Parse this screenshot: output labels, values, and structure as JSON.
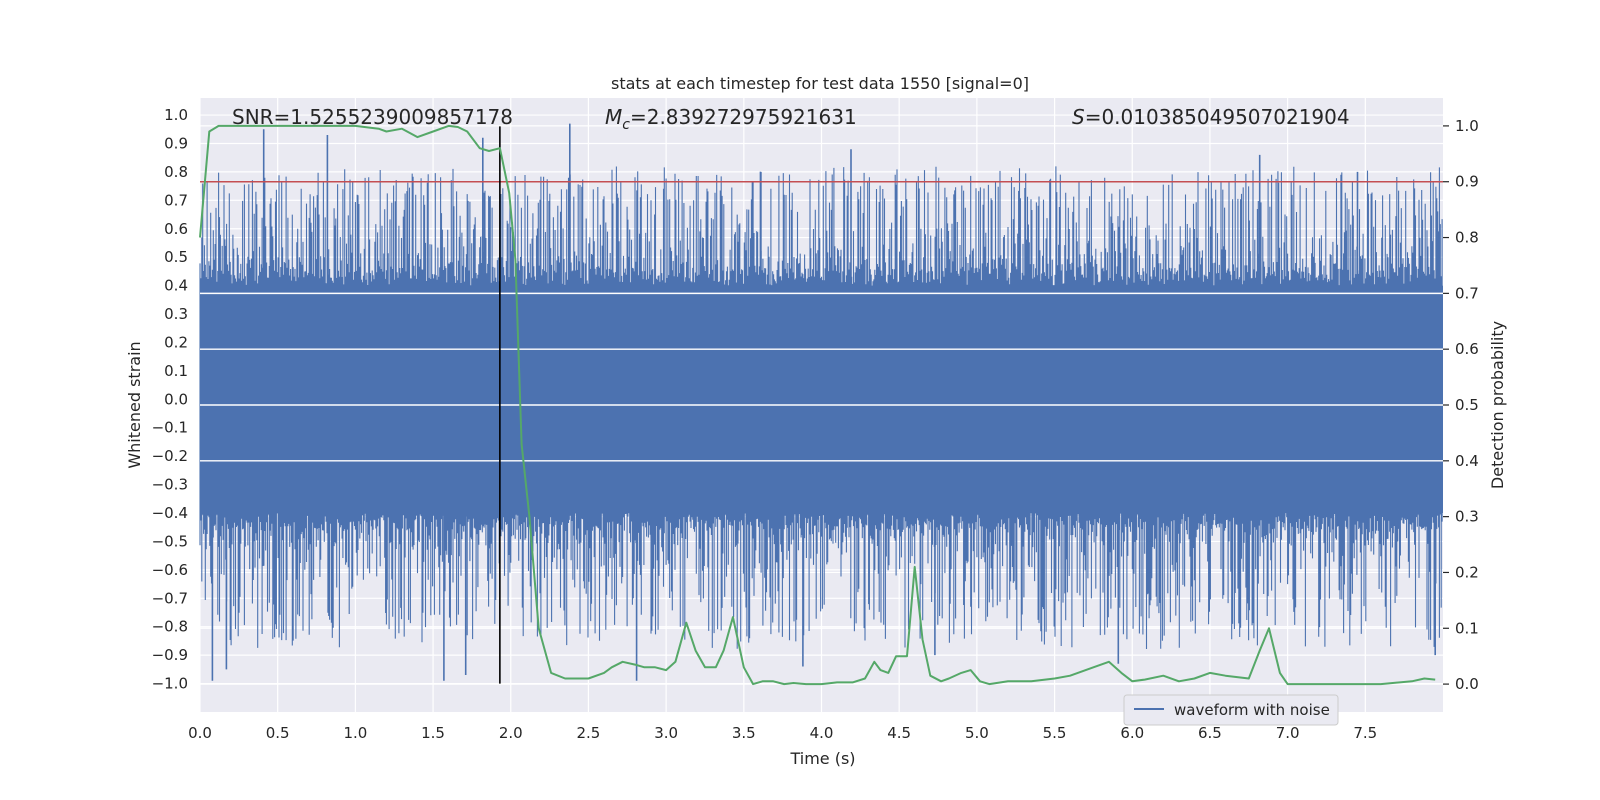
{
  "chart_data": {
    "type": "line",
    "title": "stats at each timestep for test data 1550 [signal=0]",
    "xlabel": "Time (s)",
    "ylabel_left": "Whitened strain",
    "ylabel_right": "Detection probability",
    "xlim": [
      0,
      8.0
    ],
    "ylim_left": [
      -1.1,
      1.06
    ],
    "ylim_right": [
      -0.05,
      1.05
    ],
    "x_ticks": [
      0.0,
      0.5,
      1.0,
      1.5,
      2.0,
      2.5,
      3.0,
      3.5,
      4.0,
      4.5,
      5.0,
      5.5,
      6.0,
      6.5,
      7.0,
      7.5
    ],
    "x_tick_labels": [
      "0.0",
      "0.5",
      "1.0",
      "1.5",
      "2.0",
      "2.5",
      "3.0",
      "3.5",
      "4.0",
      "4.5",
      "5.0",
      "5.5",
      "6.0",
      "6.5",
      "7.0",
      "7.5"
    ],
    "y_left_ticks": [
      1.0,
      0.9,
      0.8,
      0.7,
      0.6,
      0.5,
      0.4,
      0.3,
      0.2,
      0.1,
      0.0,
      -0.1,
      -0.2,
      -0.3,
      -0.4,
      -0.5,
      -0.6,
      -0.7,
      -0.8,
      -0.9,
      -1.0
    ],
    "y_left_tick_labels": [
      "1.0",
      "0.9",
      "0.8",
      "0.7",
      "0.6",
      "0.5",
      "0.4",
      "0.3",
      "0.2",
      "0.1",
      "0.0",
      "−0.1",
      "−0.2",
      "−0.3",
      "−0.4",
      "−0.5",
      "−0.6",
      "−0.7",
      "−0.8",
      "−0.9",
      "−1.0"
    ],
    "y_right_ticks": [
      1.0,
      0.9,
      0.8,
      0.7,
      0.6,
      0.5,
      0.4,
      0.3,
      0.2,
      0.1,
      0.0
    ],
    "y_right_tick_labels": [
      "1.0",
      "0.9",
      "0.8",
      "0.7",
      "0.6",
      "0.5",
      "0.4",
      "0.3",
      "0.2",
      "0.1",
      "0.0"
    ],
    "annotations": {
      "snr": "SNR=1.5255239009857178",
      "mc_symbol": "M",
      "mc_sub": "c",
      "mc_value": "=2.839272975921631",
      "s_symbol": "S",
      "s_value": "=0.010385049507021904"
    },
    "legend": {
      "location": "lower-center-right",
      "entries": [
        "waveform with noise"
      ]
    },
    "threshold_line": {
      "axis": "right",
      "y": 0.9,
      "color": "#c44e52"
    },
    "vline": {
      "x": 1.93,
      "color": "#000000"
    },
    "waveform": {
      "name": "waveform with noise",
      "axis": "left",
      "color": "#4c72b0",
      "duration": 8.0,
      "core_amplitude": 0.4,
      "peak_upper": [
        [
          0.41,
          0.95
        ],
        [
          0.82,
          0.93
        ],
        [
          1.82,
          0.92
        ],
        [
          2.38,
          0.97
        ],
        [
          4.19,
          0.88
        ],
        [
          6.82,
          0.86
        ],
        [
          3.61,
          0.8
        ],
        [
          7.45,
          0.8
        ]
      ],
      "peak_lower": [
        [
          0.08,
          -0.99
        ],
        [
          0.17,
          -0.95
        ],
        [
          1.57,
          -0.99
        ],
        [
          1.71,
          -0.97
        ],
        [
          2.81,
          -0.99
        ],
        [
          3.88,
          -0.94
        ],
        [
          5.91,
          -0.93
        ],
        [
          4.73,
          -0.9
        ],
        [
          7.95,
          -0.9
        ]
      ]
    },
    "probability": {
      "name": "detection probability",
      "axis": "right",
      "color": "#55a868",
      "x": [
        0.0,
        0.06,
        0.12,
        0.25,
        0.5,
        0.8,
        1.0,
        1.15,
        1.2,
        1.3,
        1.4,
        1.5,
        1.6,
        1.66,
        1.72,
        1.8,
        1.86,
        1.93,
        1.99,
        2.03,
        2.07,
        2.12,
        2.18,
        2.26,
        2.35,
        2.5,
        2.6,
        2.65,
        2.72,
        2.8,
        2.86,
        2.93,
        3.0,
        3.06,
        3.13,
        3.19,
        3.25,
        3.32,
        3.37,
        3.43,
        3.5,
        3.56,
        3.62,
        3.69,
        3.76,
        3.82,
        3.9,
        4.0,
        4.1,
        4.2,
        4.28,
        4.34,
        4.38,
        4.43,
        4.48,
        4.55,
        4.6,
        4.65,
        4.7,
        4.77,
        4.82,
        4.9,
        4.96,
        5.02,
        5.08,
        5.2,
        5.35,
        5.5,
        5.6,
        5.75,
        5.85,
        5.93,
        6.0,
        6.08,
        6.2,
        6.3,
        6.4,
        6.5,
        6.6,
        6.75,
        6.82,
        6.88,
        6.95,
        7.0,
        7.2,
        7.4,
        7.6,
        7.8,
        7.88,
        7.95
      ],
      "y": [
        0.8,
        0.99,
        1.0,
        1.0,
        1.0,
        1.0,
        1.0,
        0.995,
        0.99,
        0.995,
        0.98,
        0.99,
        1.0,
        0.998,
        0.99,
        0.96,
        0.955,
        0.96,
        0.88,
        0.76,
        0.43,
        0.3,
        0.1,
        0.02,
        0.01,
        0.01,
        0.02,
        0.03,
        0.04,
        0.035,
        0.03,
        0.03,
        0.025,
        0.04,
        0.11,
        0.06,
        0.03,
        0.03,
        0.06,
        0.12,
        0.03,
        0.0,
        0.005,
        0.005,
        0.0,
        0.002,
        0.0,
        0.0,
        0.003,
        0.003,
        0.01,
        0.04,
        0.025,
        0.02,
        0.05,
        0.05,
        0.21,
        0.08,
        0.015,
        0.005,
        0.01,
        0.02,
        0.025,
        0.005,
        0.0,
        0.005,
        0.005,
        0.01,
        0.015,
        0.03,
        0.04,
        0.02,
        0.005,
        0.008,
        0.015,
        0.005,
        0.01,
        0.02,
        0.015,
        0.01,
        0.06,
        0.1,
        0.02,
        0.0,
        0.0,
        0.0,
        0.0,
        0.005,
        0.01,
        0.008
      ]
    }
  }
}
